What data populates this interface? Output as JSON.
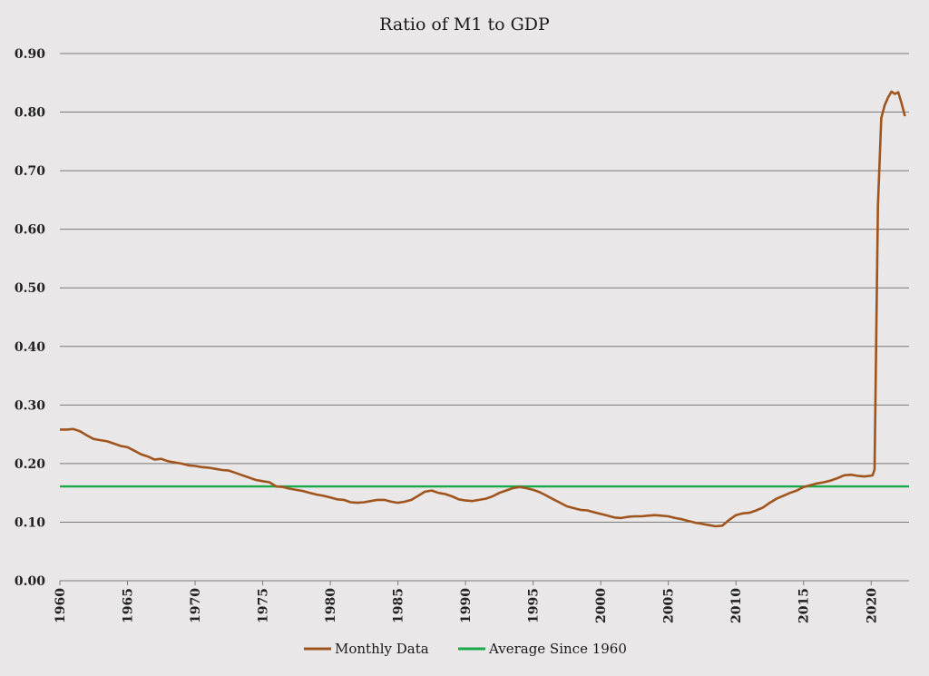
{
  "chart_data": {
    "type": "line",
    "title": "Ratio of M1 to GDP",
    "xlabel": "",
    "ylabel": "",
    "xlim": [
      1960,
      2022.8
    ],
    "ylim": [
      0,
      0.9
    ],
    "yticks": [
      0.0,
      0.1,
      0.2,
      0.3,
      0.4,
      0.5,
      0.6,
      0.7,
      0.8,
      0.9
    ],
    "ytick_labels": [
      "0.00",
      "0.10",
      "0.20",
      "0.30",
      "0.40",
      "0.50",
      "0.60",
      "0.70",
      "0.80",
      "0.90"
    ],
    "xticks": [
      1960,
      1965,
      1970,
      1975,
      1980,
      1985,
      1990,
      1995,
      2000,
      2005,
      2010,
      2015,
      2020
    ],
    "xtick_labels": [
      "1960",
      "1965",
      "1970",
      "1975",
      "1980",
      "1985",
      "1990",
      "1995",
      "2000",
      "2005",
      "2010",
      "2015",
      "2020"
    ],
    "grid": true,
    "legend_position": "bottom-center",
    "series": [
      {
        "name": "Monthly Data",
        "color": "#a0551e",
        "x": [
          1960,
          1960.5,
          1961,
          1961.5,
          1962,
          1962.5,
          1963,
          1963.5,
          1964,
          1964.5,
          1965,
          1965.5,
          1966,
          1966.5,
          1967,
          1967.5,
          1968,
          1968.5,
          1969,
          1969.5,
          1970,
          1970.5,
          1971,
          1971.5,
          1972,
          1972.5,
          1973,
          1973.5,
          1974,
          1974.5,
          1975,
          1975.5,
          1976,
          1976.5,
          1977,
          1977.5,
          1978,
          1978.5,
          1979,
          1979.5,
          1980,
          1980.5,
          1981,
          1981.5,
          1982,
          1982.5,
          1983,
          1983.5,
          1984,
          1984.5,
          1985,
          1985.5,
          1986,
          1986.5,
          1987,
          1987.5,
          1988,
          1988.5,
          1989,
          1989.5,
          1990,
          1990.5,
          1991,
          1991.5,
          1992,
          1992.5,
          1993,
          1993.5,
          1994,
          1994.5,
          1995,
          1995.5,
          1996,
          1996.5,
          1997,
          1997.5,
          1998,
          1998.5,
          1999,
          1999.5,
          2000,
          2000.5,
          2001,
          2001.5,
          2002,
          2002.5,
          2003,
          2003.5,
          2004,
          2004.5,
          2005,
          2005.5,
          2006,
          2006.5,
          2007,
          2007.5,
          2008,
          2008.5,
          2009,
          2009.5,
          2010,
          2010.5,
          2011,
          2011.5,
          2012,
          2012.5,
          2013,
          2013.5,
          2014,
          2014.5,
          2015,
          2015.5,
          2016,
          2016.5,
          2017,
          2017.5,
          2018,
          2018.5,
          2019,
          2019.5,
          2019.9,
          2020.1,
          2020.25,
          2020.5,
          2020.75,
          2021,
          2021.25,
          2021.5,
          2021.75,
          2022,
          2022.25,
          2022.5
        ],
        "values": [
          0.258,
          0.258,
          0.259,
          0.255,
          0.248,
          0.242,
          0.24,
          0.238,
          0.234,
          0.23,
          0.228,
          0.222,
          0.216,
          0.212,
          0.207,
          0.208,
          0.204,
          0.202,
          0.2,
          0.197,
          0.196,
          0.194,
          0.193,
          0.191,
          0.189,
          0.188,
          0.184,
          0.18,
          0.176,
          0.172,
          0.17,
          0.168,
          0.161,
          0.16,
          0.157,
          0.155,
          0.153,
          0.15,
          0.147,
          0.145,
          0.142,
          0.139,
          0.138,
          0.134,
          0.133,
          0.134,
          0.136,
          0.138,
          0.138,
          0.135,
          0.133,
          0.135,
          0.138,
          0.145,
          0.152,
          0.154,
          0.15,
          0.148,
          0.144,
          0.139,
          0.137,
          0.136,
          0.138,
          0.14,
          0.144,
          0.15,
          0.154,
          0.158,
          0.16,
          0.158,
          0.155,
          0.151,
          0.145,
          0.139,
          0.133,
          0.127,
          0.124,
          0.121,
          0.12,
          0.117,
          0.114,
          0.111,
          0.108,
          0.107,
          0.109,
          0.11,
          0.11,
          0.111,
          0.112,
          0.111,
          0.11,
          0.107,
          0.105,
          0.102,
          0.099,
          0.097,
          0.095,
          0.093,
          0.094,
          0.104,
          0.112,
          0.115,
          0.116,
          0.12,
          0.125,
          0.133,
          0.14,
          0.145,
          0.15,
          0.154,
          0.16,
          0.163,
          0.166,
          0.168,
          0.171,
          0.175,
          0.18,
          0.181,
          0.179,
          0.178,
          0.179,
          0.18,
          0.19,
          0.64,
          0.79,
          0.812,
          0.825,
          0.835,
          0.831,
          0.834,
          0.815,
          0.793
        ]
      },
      {
        "name": "Average Since 1960",
        "color": "#1aa848",
        "x": [
          1960,
          2022.8
        ],
        "values": [
          0.161,
          0.161
        ]
      }
    ]
  }
}
